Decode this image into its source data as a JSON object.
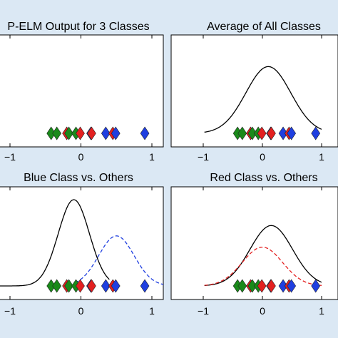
{
  "figure": {
    "background": "#dbe8f4",
    "panel_bg": "#ffffff"
  },
  "colors": {
    "green": "#1a8a1a",
    "red": "#e32020",
    "blue": "#1f3fe0",
    "curve": "#000000"
  },
  "chart_data": [
    {
      "type": "scatter",
      "title": "P-ELM Output for 3 Classes",
      "xlabel": "",
      "ylabel": "",
      "xlim": [
        -1.35,
        1.55
      ],
      "x_ticks": [
        -1,
        0,
        1
      ],
      "x_tick_labels": [
        "−1",
        "0",
        "1"
      ],
      "grid": false,
      "curves": [],
      "points": [
        {
          "x": -0.42,
          "class": "green"
        },
        {
          "x": -0.34,
          "class": "green"
        },
        {
          "x": -0.2,
          "class": "red"
        },
        {
          "x": -0.17,
          "class": "green"
        },
        {
          "x": -0.07,
          "class": "green"
        },
        {
          "x": -0.01,
          "class": "red"
        },
        {
          "x": 0.14,
          "class": "blue"
        },
        {
          "x": 0.15,
          "class": "red"
        },
        {
          "x": 0.35,
          "class": "blue"
        },
        {
          "x": 0.45,
          "class": "red"
        },
        {
          "x": 0.49,
          "class": "blue"
        },
        {
          "x": 0.9,
          "class": "blue"
        }
      ]
    },
    {
      "type": "line",
      "title": "Average of All Classes",
      "xlabel": "",
      "ylabel": "",
      "xlim": [
        -1.35,
        1.55
      ],
      "x_ticks": [
        -1,
        0,
        1
      ],
      "x_tick_labels": [
        "−1",
        "0",
        "1"
      ],
      "grid": false,
      "curves": [
        {
          "mean": 0.1,
          "sd": 0.38,
          "peak": 0.78,
          "style": "solid",
          "color": "curve",
          "range": [
            -0.98,
            1.0
          ]
        }
      ],
      "points": [
        {
          "x": -0.42,
          "class": "green"
        },
        {
          "x": -0.34,
          "class": "green"
        },
        {
          "x": -0.2,
          "class": "red"
        },
        {
          "x": -0.17,
          "class": "green"
        },
        {
          "x": -0.07,
          "class": "green"
        },
        {
          "x": -0.01,
          "class": "red"
        },
        {
          "x": 0.14,
          "class": "blue"
        },
        {
          "x": 0.15,
          "class": "red"
        },
        {
          "x": 0.35,
          "class": "blue"
        },
        {
          "x": 0.45,
          "class": "red"
        },
        {
          "x": 0.49,
          "class": "blue"
        },
        {
          "x": 0.9,
          "class": "blue"
        }
      ]
    },
    {
      "type": "line",
      "title": "Blue Class vs. Others",
      "xlabel": "",
      "ylabel": "",
      "xlim": [
        -1.35,
        1.55
      ],
      "x_ticks": [
        -1,
        0,
        1
      ],
      "x_tick_labels": [
        "−1",
        "0",
        "1"
      ],
      "grid": false,
      "curves": [
        {
          "mean": -0.1,
          "sd": 0.22,
          "peak": 1.0,
          "style": "solid",
          "color": "curve",
          "range": [
            -1.35,
            0.4
          ]
        },
        {
          "mean": 0.5,
          "sd": 0.25,
          "peak": 0.58,
          "style": "dashed",
          "color": "blue",
          "range": [
            -0.08,
            1.55
          ]
        }
      ],
      "points": [
        {
          "x": -0.42,
          "class": "green"
        },
        {
          "x": -0.34,
          "class": "green"
        },
        {
          "x": -0.2,
          "class": "red"
        },
        {
          "x": -0.17,
          "class": "green"
        },
        {
          "x": -0.07,
          "class": "green"
        },
        {
          "x": -0.01,
          "class": "red"
        },
        {
          "x": 0.14,
          "class": "blue"
        },
        {
          "x": 0.15,
          "class": "red"
        },
        {
          "x": 0.35,
          "class": "blue"
        },
        {
          "x": 0.45,
          "class": "red"
        },
        {
          "x": 0.49,
          "class": "blue"
        },
        {
          "x": 0.9,
          "class": "blue"
        }
      ]
    },
    {
      "type": "line",
      "title": "Red Class vs. Others",
      "xlabel": "",
      "ylabel": "",
      "xlim": [
        -1.35,
        1.55
      ],
      "x_ticks": [
        -1,
        0,
        1
      ],
      "x_tick_labels": [
        "−1",
        "0",
        "1"
      ],
      "grid": false,
      "curves": [
        {
          "mean": 0.15,
          "sd": 0.36,
          "peak": 0.7,
          "style": "solid",
          "color": "curve",
          "range": [
            -0.98,
            1.0
          ]
        },
        {
          "mean": 0.0,
          "sd": 0.34,
          "peak": 0.45,
          "style": "dashed",
          "color": "red",
          "range": [
            -0.98,
            1.0
          ]
        }
      ],
      "points": [
        {
          "x": -0.42,
          "class": "green"
        },
        {
          "x": -0.34,
          "class": "green"
        },
        {
          "x": -0.2,
          "class": "red"
        },
        {
          "x": -0.17,
          "class": "green"
        },
        {
          "x": -0.07,
          "class": "green"
        },
        {
          "x": -0.01,
          "class": "red"
        },
        {
          "x": 0.14,
          "class": "blue"
        },
        {
          "x": 0.15,
          "class": "red"
        },
        {
          "x": 0.35,
          "class": "blue"
        },
        {
          "x": 0.45,
          "class": "red"
        },
        {
          "x": 0.49,
          "class": "blue"
        },
        {
          "x": 0.9,
          "class": "blue"
        }
      ]
    }
  ]
}
